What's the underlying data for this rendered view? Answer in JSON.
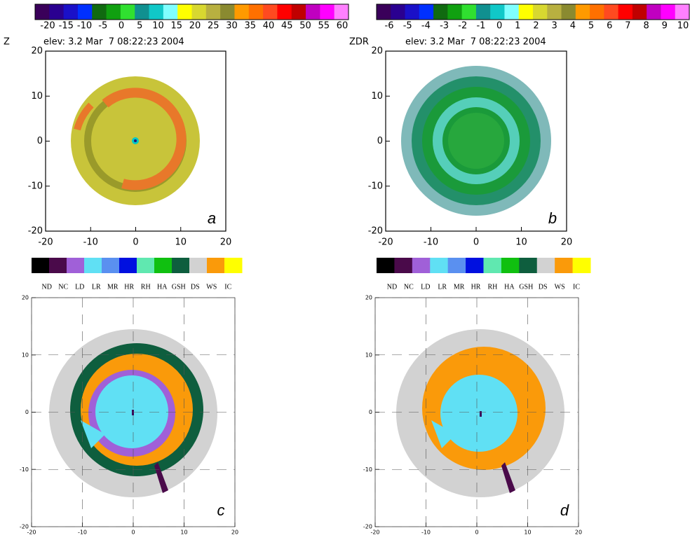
{
  "panels": [
    {
      "field": "Z",
      "header": "elev: 3.2 Mar  7 08:22:23 2004",
      "letter": "a",
      "colorbar_labels": [
        -20,
        -15,
        -10,
        -5,
        0,
        5,
        10,
        15,
        20,
        25,
        30,
        35,
        40,
        45,
        50,
        55,
        60
      ],
      "xticks": [
        -20,
        -10,
        0,
        10,
        20
      ],
      "yticks": [
        -20,
        -10,
        0,
        10,
        20
      ]
    },
    {
      "field": "ZDR",
      "header": "elev: 3.2 Mar  7 08:22:23 2004",
      "letter": "b",
      "colorbar_labels": [
        -6,
        -5,
        -4,
        -3,
        -2,
        -1,
        0,
        1,
        2,
        3,
        4,
        5,
        6,
        7,
        8,
        9,
        10
      ],
      "xticks": [
        -20,
        -10,
        0,
        10,
        20
      ],
      "yticks": [
        -20,
        -10,
        0,
        10,
        20
      ]
    },
    {
      "letter": "c",
      "xticks": [
        -20,
        -10,
        0,
        10,
        20
      ],
      "yticks": [
        -20,
        -10,
        0,
        10,
        20
      ]
    },
    {
      "letter": "d",
      "xticks": [
        -20,
        -10,
        0,
        10,
        20
      ],
      "yticks": [
        -20,
        -10,
        0,
        10,
        20
      ]
    }
  ],
  "classes": [
    "ND",
    "NC",
    "LD",
    "LR",
    "MR",
    "HR",
    "RH",
    "HA",
    "GSH",
    "DS",
    "WS",
    "IC"
  ]
}
